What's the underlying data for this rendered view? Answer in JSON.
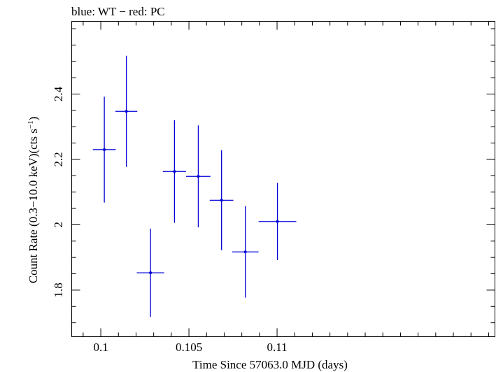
{
  "chart_data": {
    "type": "scatter",
    "title": "blue: WT − red: PC",
    "xlabel": "Time Since 57063.0 MJD (days)",
    "ylabel_main": "Count Rate (0.3−10.0 keV)(cts s",
    "ylabel_sup": "−1",
    "ylabel_close": ")",
    "xlim": [
      0.09835,
      0.12236
    ],
    "ylim": [
      1.6575,
      2.6225
    ],
    "x_ticks": [
      0.1,
      0.105,
      0.11
    ],
    "x_tick_labels": [
      "0.1",
      "0.105",
      "0.11"
    ],
    "x_minor_step": 0.001,
    "y_ticks": [
      1.8,
      2.0,
      2.2,
      2.4
    ],
    "y_tick_labels": [
      "1.8",
      "2",
      "2.2",
      "2.4"
    ],
    "y_minor_step": 0.05,
    "grid": false,
    "series": [
      {
        "color": "#0000d8",
        "points": [
          {
            "x": 0.1002,
            "xerr": 0.00065,
            "y": 2.23,
            "yerr": 0.162
          },
          {
            "x": 0.10145,
            "xerr": 0.00062,
            "y": 2.347,
            "yerr": 0.17
          },
          {
            "x": 0.10282,
            "xerr": 0.00078,
            "y": 1.853,
            "yerr": 0.135
          },
          {
            "x": 0.10418,
            "xerr": 0.00066,
            "y": 2.163,
            "yerr": 0.157
          },
          {
            "x": 0.10553,
            "xerr": 0.00069,
            "y": 2.148,
            "yerr": 0.156
          },
          {
            "x": 0.10685,
            "xerr": 0.00067,
            "y": 2.075,
            "yerr": 0.153
          },
          {
            "x": 0.1082,
            "xerr": 0.00075,
            "y": 1.917,
            "yerr": 0.14
          },
          {
            "x": 0.11002,
            "xerr": 0.00107,
            "y": 2.01,
            "yerr": 0.118
          }
        ]
      }
    ]
  }
}
